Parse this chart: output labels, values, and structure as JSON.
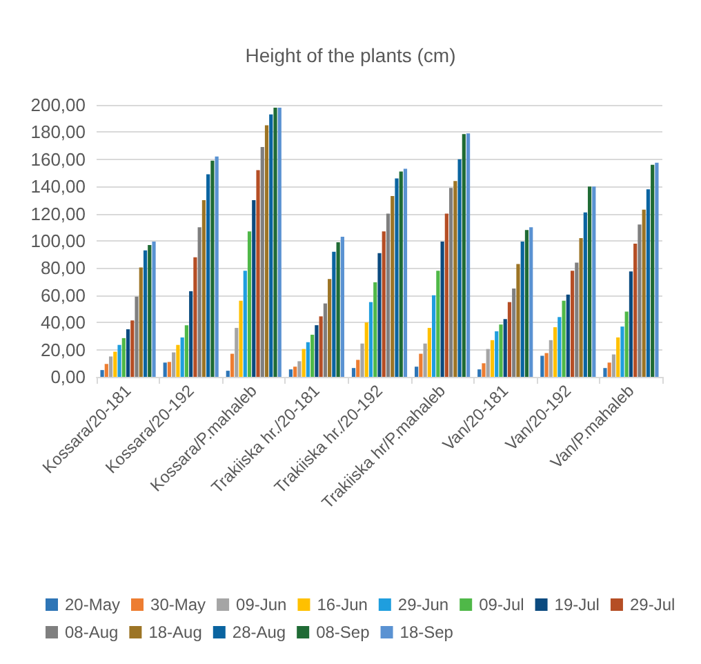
{
  "chart_data": {
    "type": "bar",
    "title": "Height of the plants (cm)",
    "categories": [
      "Kossara/20-181",
      "Kossara/20-192",
      "Kossara/P.mahaleb",
      "Trakiiska hr./20-181",
      "Trakiiska hr./20-192",
      "Trakiiska hr/P.mahaleb",
      "Van/20-181",
      "Van/20-192",
      "Van/P.mahaleb"
    ],
    "series": [
      {
        "name": "20-May",
        "color": "#2e75b6",
        "values": [
          5,
          10.5,
          4.5,
          5.5,
          6.5,
          7.5,
          5.5,
          15.5,
          6.5
        ]
      },
      {
        "name": "30-May",
        "color": "#ed7d31",
        "values": [
          9.5,
          11,
          17,
          7.5,
          12.5,
          17,
          10,
          17.5,
          10.5
        ]
      },
      {
        "name": "09-Jun",
        "color": "#a5a5a5",
        "values": [
          15,
          18,
          36,
          11.5,
          24.5,
          24.5,
          20.5,
          27,
          16.5
        ]
      },
      {
        "name": "16-Jun",
        "color": "#ffc000",
        "values": [
          18.5,
          23.5,
          56,
          20.5,
          40,
          36,
          27,
          36.5,
          29
        ]
      },
      {
        "name": "29-Jun",
        "color": "#1f9ede",
        "values": [
          23.5,
          29,
          78,
          25.5,
          55,
          60,
          33.5,
          44,
          37
        ]
      },
      {
        "name": "09-Jul",
        "color": "#4fb848",
        "values": [
          28.5,
          38,
          107,
          31,
          69.5,
          78,
          38.5,
          56,
          48
        ]
      },
      {
        "name": "19-Jul",
        "color": "#0b4a7f",
        "values": [
          35,
          63,
          130,
          38,
          91,
          99.5,
          42.5,
          60.5,
          77.5
        ]
      },
      {
        "name": "29-Jul",
        "color": "#b54e25",
        "values": [
          41.5,
          88,
          152,
          44.5,
          107,
          120,
          55,
          78,
          98
        ]
      },
      {
        "name": "08-Aug",
        "color": "#7f7f7f",
        "values": [
          59,
          110,
          169,
          54,
          120,
          139,
          65,
          84,
          112
        ]
      },
      {
        "name": "18-Aug",
        "color": "#9c7425",
        "values": [
          80.5,
          130,
          185,
          72,
          133,
          144,
          83,
          102,
          123
        ]
      },
      {
        "name": "28-Aug",
        "color": "#0a64a0",
        "values": [
          93,
          149,
          193,
          92,
          146,
          160,
          99.5,
          121,
          138
        ]
      },
      {
        "name": "08-Sep",
        "color": "#1f6b35",
        "values": [
          97,
          159,
          198,
          99,
          151,
          178.5,
          108,
          140,
          156
        ]
      },
      {
        "name": "18-Sep",
        "color": "#5a92d2",
        "values": [
          99.5,
          162,
          198,
          103,
          153,
          179,
          110,
          140,
          157.5
        ]
      }
    ],
    "ylim": [
      0,
      200
    ],
    "yticks": [
      {
        "value": 0,
        "label": "0,00"
      },
      {
        "value": 20,
        "label": "20,00"
      },
      {
        "value": 40,
        "label": "40,00"
      },
      {
        "value": 60,
        "label": "60,00"
      },
      {
        "value": 80,
        "label": "80,00"
      },
      {
        "value": 100,
        "label": "100,00"
      },
      {
        "value": 120,
        "label": "120,00"
      },
      {
        "value": 140,
        "label": "140,00"
      },
      {
        "value": 160,
        "label": "160,00"
      },
      {
        "value": 180,
        "label": "180,00"
      },
      {
        "value": 200,
        "label": "200,00"
      }
    ],
    "grid": "y",
    "legend": "bottom"
  }
}
